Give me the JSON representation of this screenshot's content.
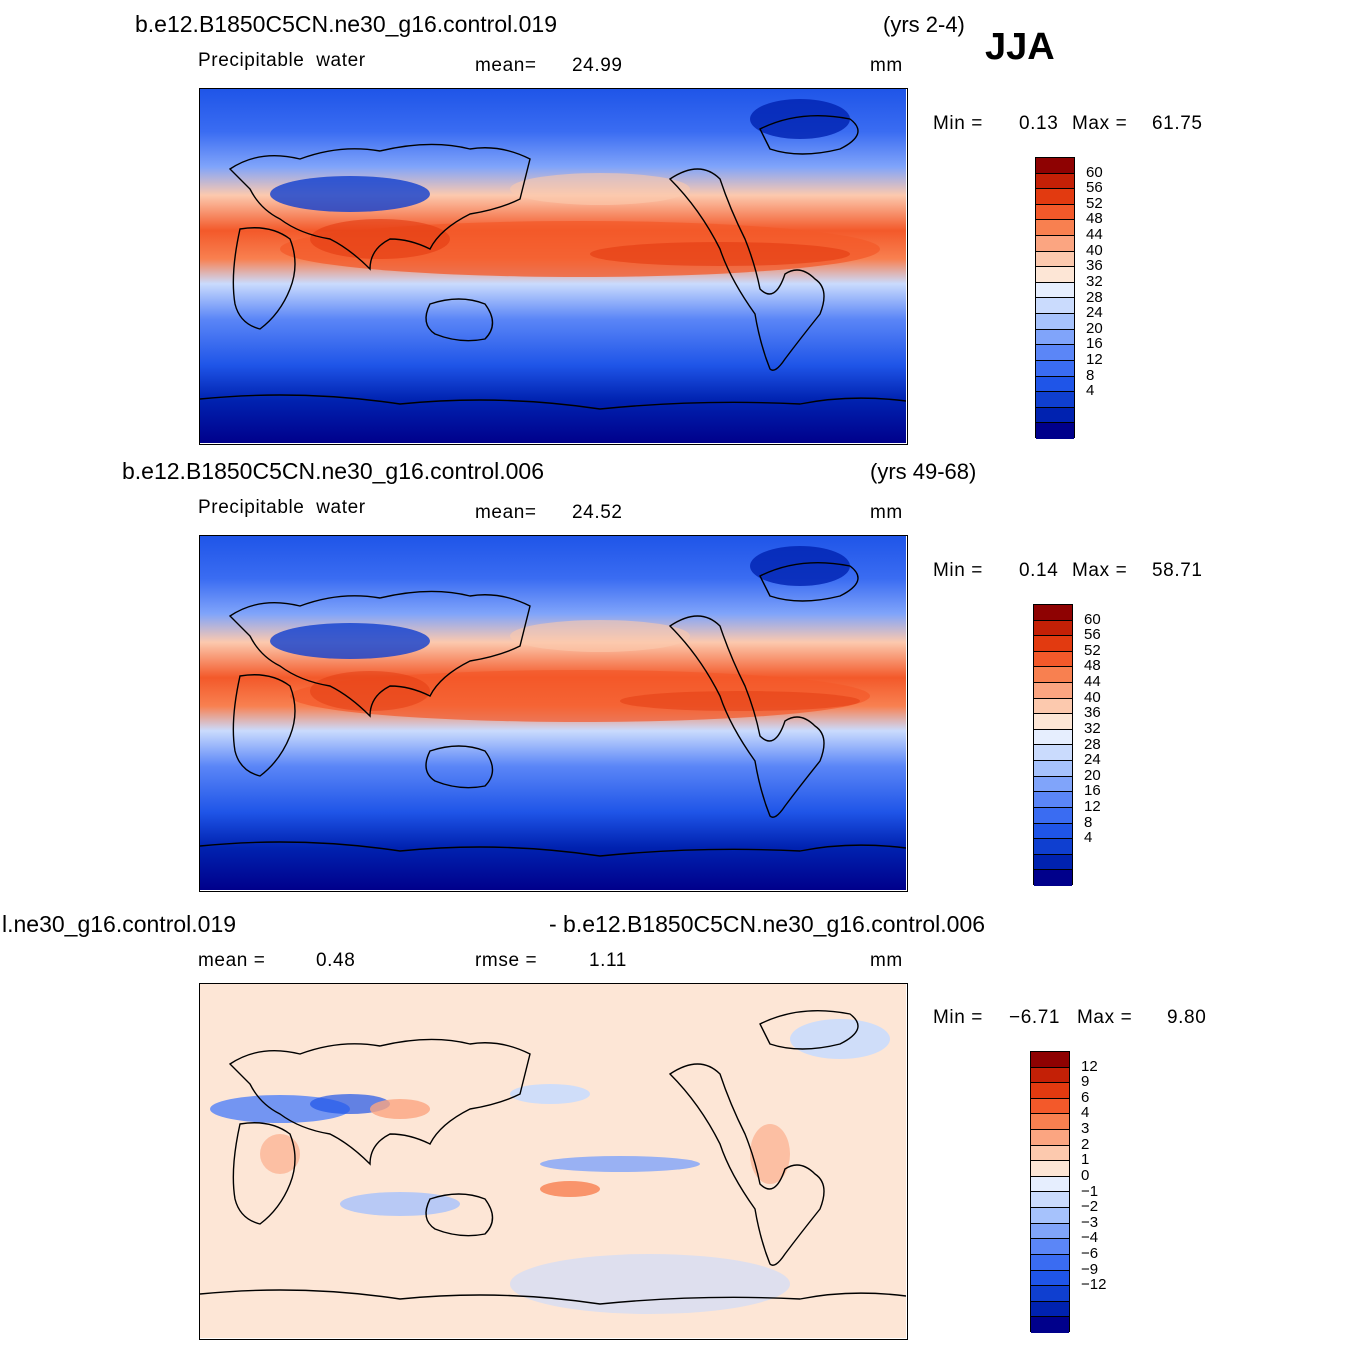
{
  "season": "JJA",
  "colors": {
    "precip": [
      "#00008b",
      "#0022b0",
      "#0f3fd0",
      "#1f55e8",
      "#3a6cf2",
      "#5b86f7",
      "#80a4fa",
      "#a6c2fc",
      "#cadbfd",
      "#e6eefe",
      "#fde6d6",
      "#fcc9ae",
      "#fba581",
      "#f88050",
      "#f3592a",
      "#e23a10",
      "#c42006",
      "#8e0202"
    ],
    "diff": [
      "#00008b",
      "#0022b0",
      "#0f3fd0",
      "#1f55e8",
      "#3a6cf2",
      "#5b86f7",
      "#80a4fa",
      "#a6c2fc",
      "#cadbfd",
      "#e6eefe",
      "#fde6d6",
      "#fcc9ae",
      "#fba581",
      "#f88050",
      "#f3592a",
      "#e23a10",
      "#c42006",
      "#8e0202"
    ]
  },
  "chart_data": [
    {
      "type": "heatmap",
      "case": "b.e12.B1850C5CN.ne30_g16.control.019",
      "years": "(yrs 2-4)",
      "variable": "Precipitable  water",
      "stat1_label": "mean=",
      "stat1_value": "24.99",
      "units": "mm",
      "min_label": "Min =",
      "min_value": "0.13",
      "max_label": "Max =",
      "max_value": "61.75",
      "levels": [
        "60",
        "56",
        "52",
        "48",
        "44",
        "40",
        "36",
        "32",
        "28",
        "24",
        "20",
        "16",
        "12",
        "8",
        "4"
      ],
      "palette": "precip"
    },
    {
      "type": "heatmap",
      "case": "b.e12.B1850C5CN.ne30_g16.control.006",
      "years": "(yrs 49-68)",
      "variable": "Precipitable  water",
      "stat1_label": "mean=",
      "stat1_value": "24.52",
      "units": "mm",
      "min_label": "Min =",
      "min_value": "0.14",
      "max_label": "Max =",
      "max_value": "58.71",
      "levels": [
        "60",
        "56",
        "52",
        "48",
        "44",
        "40",
        "36",
        "32",
        "28",
        "24",
        "20",
        "16",
        "12",
        "8",
        "4"
      ],
      "palette": "precip"
    },
    {
      "type": "heatmap",
      "case_left": "l.ne30_g16.control.019",
      "case_right": "- b.e12.B1850C5CN.ne30_g16.control.006",
      "stat1_label": "mean =",
      "stat1_value": "0.48",
      "stat2_label": "rmse =",
      "stat2_value": "1.11",
      "units": "mm",
      "min_label": "Min =",
      "min_value": "−6.71",
      "max_label": "Max =",
      "max_value": "9.80",
      "levels": [
        "12",
        "9",
        "6",
        "4",
        "3",
        "2",
        "1",
        "0",
        "−1",
        "−2",
        "−3",
        "−4",
        "−6",
        "−9",
        "−12"
      ],
      "palette": "diff"
    }
  ]
}
